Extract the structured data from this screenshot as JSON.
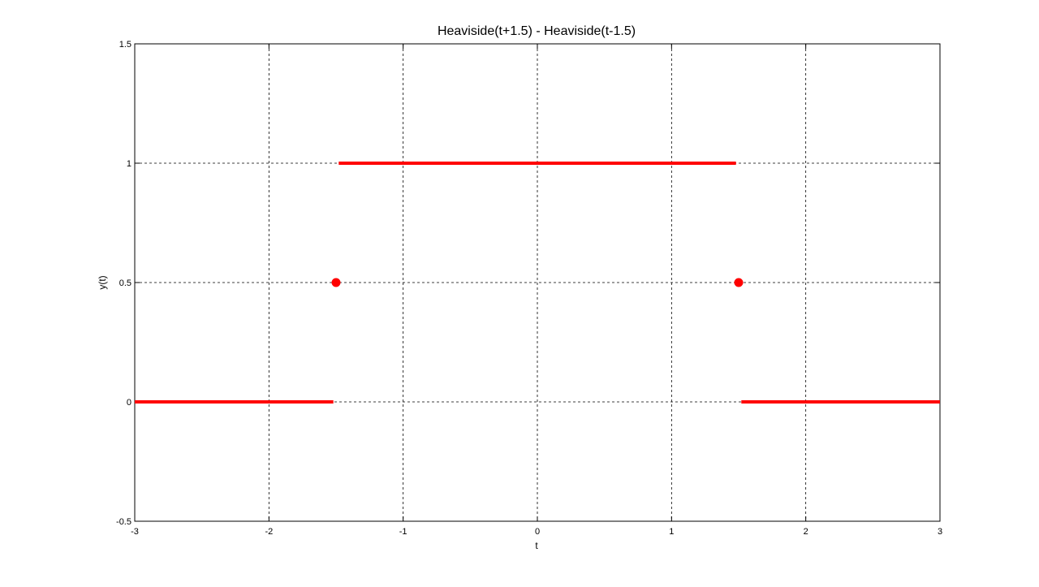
{
  "chart_data": {
    "type": "line",
    "title": "Heaviside(t+1.5) - Heaviside(t-1.5)",
    "xlabel": "t",
    "ylabel": "y(t)",
    "xlim": [
      -3,
      3
    ],
    "ylim": [
      -0.5,
      1.5
    ],
    "xticks": [
      -3,
      -2,
      -1,
      0,
      1,
      2,
      3
    ],
    "xtick_labels": [
      "-3",
      "-2",
      "-1",
      "0",
      "1",
      "2",
      "3"
    ],
    "yticks": [
      -0.5,
      0,
      0.5,
      1,
      1.5
    ],
    "ytick_labels": [
      "-0.5",
      "0",
      "0.5",
      "1",
      "1.5"
    ],
    "grid": true,
    "line_color": "#ff0000",
    "segments": [
      {
        "x": [
          -3,
          -1.52
        ],
        "y": [
          0,
          0
        ]
      },
      {
        "x": [
          -1.48,
          1.48
        ],
        "y": [
          1,
          1
        ]
      },
      {
        "x": [
          1.52,
          3
        ],
        "y": [
          0,
          0
        ]
      }
    ],
    "points": [
      {
        "x": -1.5,
        "y": 0.5
      },
      {
        "x": 1.5,
        "y": 0.5
      }
    ]
  }
}
